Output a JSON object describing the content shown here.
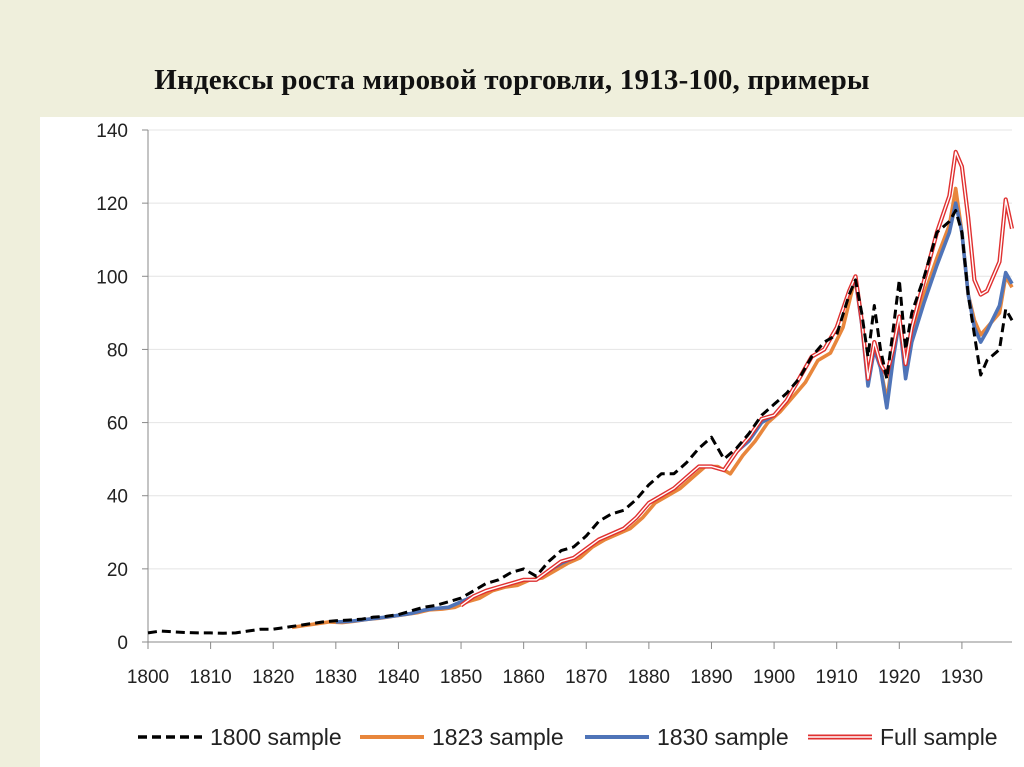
{
  "title": "Индексы роста мировой торговли, 1913-100, примеры",
  "chart_data": {
    "type": "line",
    "title": "Индексы роста мировой торговли, 1913-100, примеры",
    "xlabel": "",
    "ylabel": "",
    "xlim": [
      1800,
      1938
    ],
    "ylim": [
      0,
      140
    ],
    "x_ticks": [
      1800,
      1810,
      1820,
      1830,
      1840,
      1850,
      1860,
      1870,
      1880,
      1890,
      1900,
      1910,
      1920,
      1930
    ],
    "y_ticks": [
      0,
      20,
      40,
      60,
      80,
      100,
      120,
      140
    ],
    "grid": "horizontal",
    "legend_position": "bottom",
    "series": [
      {
        "name": "1800 sample",
        "style": "dashed",
        "color": "#000000",
        "x": [
          1800,
          1802,
          1804,
          1806,
          1808,
          1810,
          1812,
          1814,
          1816,
          1818,
          1820,
          1822,
          1824,
          1826,
          1828,
          1830,
          1832,
          1834,
          1836,
          1838,
          1840,
          1842,
          1844,
          1846,
          1848,
          1850,
          1852,
          1854,
          1856,
          1858,
          1860,
          1862,
          1864,
          1866,
          1868,
          1870,
          1872,
          1874,
          1876,
          1878,
          1880,
          1882,
          1884,
          1886,
          1888,
          1890,
          1892,
          1894,
          1896,
          1898,
          1900,
          1902,
          1904,
          1906,
          1908,
          1910,
          1912,
          1913,
          1914,
          1915,
          1916,
          1917,
          1918,
          1919,
          1920,
          1921,
          1922,
          1924,
          1926,
          1928,
          1929,
          1930,
          1931,
          1932,
          1933,
          1934,
          1936,
          1937,
          1938
        ],
        "y": [
          2.5,
          3,
          2.8,
          2.6,
          2.5,
          2.5,
          2.4,
          2.5,
          3.0,
          3.5,
          3.5,
          4,
          4.5,
          5,
          5.5,
          5.8,
          6,
          6.2,
          6.8,
          7,
          7.5,
          8.5,
          9.5,
          10,
          11,
          12,
          14,
          16,
          17,
          19,
          20,
          18,
          22,
          25,
          26,
          29,
          33,
          35,
          36,
          39,
          43,
          46,
          46,
          49,
          53,
          56,
          50,
          53,
          57,
          62,
          65,
          68,
          72,
          78,
          82,
          84,
          95,
          99,
          90,
          78,
          92,
          80,
          72,
          85,
          99,
          80,
          90,
          100,
          112,
          115,
          118,
          112,
          95,
          84,
          73,
          77,
          80,
          91,
          88
        ]
      },
      {
        "name": "1823 sample",
        "style": "solid",
        "color": "#e8863c",
        "x": [
          1823,
          1825,
          1827,
          1829,
          1831,
          1833,
          1835,
          1837,
          1839,
          1841,
          1843,
          1845,
          1847,
          1849,
          1851,
          1853,
          1855,
          1857,
          1859,
          1861,
          1863,
          1865,
          1867,
          1869,
          1871,
          1873,
          1875,
          1877,
          1879,
          1881,
          1883,
          1885,
          1887,
          1889,
          1891,
          1893,
          1895,
          1897,
          1899,
          1901,
          1903,
          1905,
          1907,
          1909,
          1911,
          1913,
          1914,
          1915,
          1916,
          1917,
          1918,
          1919,
          1920,
          1921,
          1922,
          1924,
          1926,
          1928,
          1929,
          1930,
          1931,
          1932,
          1933,
          1934,
          1936,
          1937,
          1938
        ],
        "y": [
          4,
          4.5,
          5,
          5.5,
          5.3,
          5.7,
          6.2,
          6.5,
          7,
          7.5,
          8,
          8.8,
          9,
          9.5,
          11,
          12,
          14,
          15,
          15.5,
          17,
          17.5,
          19.5,
          21.5,
          23,
          26,
          28,
          29.5,
          31,
          34,
          38,
          40,
          42,
          45,
          48,
          48,
          46,
          51,
          55,
          60,
          63,
          67,
          71,
          77,
          79,
          86,
          100,
          88,
          72,
          82,
          75,
          66,
          78,
          88,
          77,
          85,
          95,
          105,
          114,
          124,
          112,
          95,
          88,
          84,
          86,
          90,
          100,
          97
        ]
      },
      {
        "name": "1830 sample",
        "style": "solid",
        "color": "#4f74b8",
        "x": [
          1830,
          1832,
          1834,
          1836,
          1838,
          1840,
          1842,
          1844,
          1846,
          1848,
          1850,
          1852,
          1854,
          1856,
          1858,
          1860,
          1862,
          1864,
          1866,
          1868,
          1870,
          1872,
          1874,
          1876,
          1878,
          1880,
          1882,
          1884,
          1886,
          1888,
          1890,
          1892,
          1894,
          1896,
          1898,
          1900,
          1902,
          1904,
          1906,
          1908,
          1910,
          1912,
          1913,
          1914,
          1915,
          1916,
          1917,
          1918,
          1919,
          1920,
          1921,
          1922,
          1924,
          1926,
          1928,
          1929,
          1930,
          1931,
          1932,
          1933,
          1934,
          1936,
          1937,
          1938
        ],
        "y": [
          5.5,
          5.6,
          6,
          6.4,
          6.8,
          7.3,
          7.8,
          8.7,
          9.2,
          9.5,
          11,
          12.5,
          14,
          15,
          16,
          17,
          17,
          19.5,
          21.5,
          23,
          25.5,
          28,
          29.5,
          31,
          34,
          38,
          40,
          42,
          45,
          48,
          48,
          47,
          52,
          55,
          60,
          62,
          66,
          72,
          78,
          80,
          86,
          96,
          99,
          87,
          70,
          80,
          75,
          64,
          77,
          88,
          72,
          82,
          93,
          103,
          112,
          120,
          112,
          95,
          86,
          82,
          85,
          92,
          101,
          98
        ]
      },
      {
        "name": "Full sample",
        "style": "double",
        "color": "#e03030",
        "x": [
          1850,
          1852,
          1854,
          1856,
          1858,
          1860,
          1862,
          1864,
          1866,
          1868,
          1870,
          1872,
          1874,
          1876,
          1878,
          1880,
          1882,
          1884,
          1886,
          1888,
          1890,
          1892,
          1894,
          1896,
          1898,
          1900,
          1902,
          1904,
          1906,
          1908,
          1910,
          1912,
          1913,
          1914,
          1915,
          1916,
          1917,
          1918,
          1919,
          1920,
          1921,
          1922,
          1924,
          1926,
          1928,
          1929,
          1930,
          1931,
          1932,
          1933,
          1934,
          1936,
          1937,
          1938
        ],
        "y": [
          10,
          12.5,
          14,
          15,
          16,
          17,
          17,
          19.5,
          22,
          23,
          25.5,
          28,
          29.5,
          31,
          34,
          38,
          40,
          42,
          45,
          48,
          48,
          47,
          52,
          56,
          61,
          62,
          66,
          72,
          78,
          80,
          86,
          96,
          100,
          88,
          72,
          82,
          76,
          73,
          80,
          89,
          76,
          86,
          99,
          112,
          122,
          134,
          130,
          116,
          99,
          95,
          96,
          104,
          121,
          113
        ]
      }
    ]
  }
}
